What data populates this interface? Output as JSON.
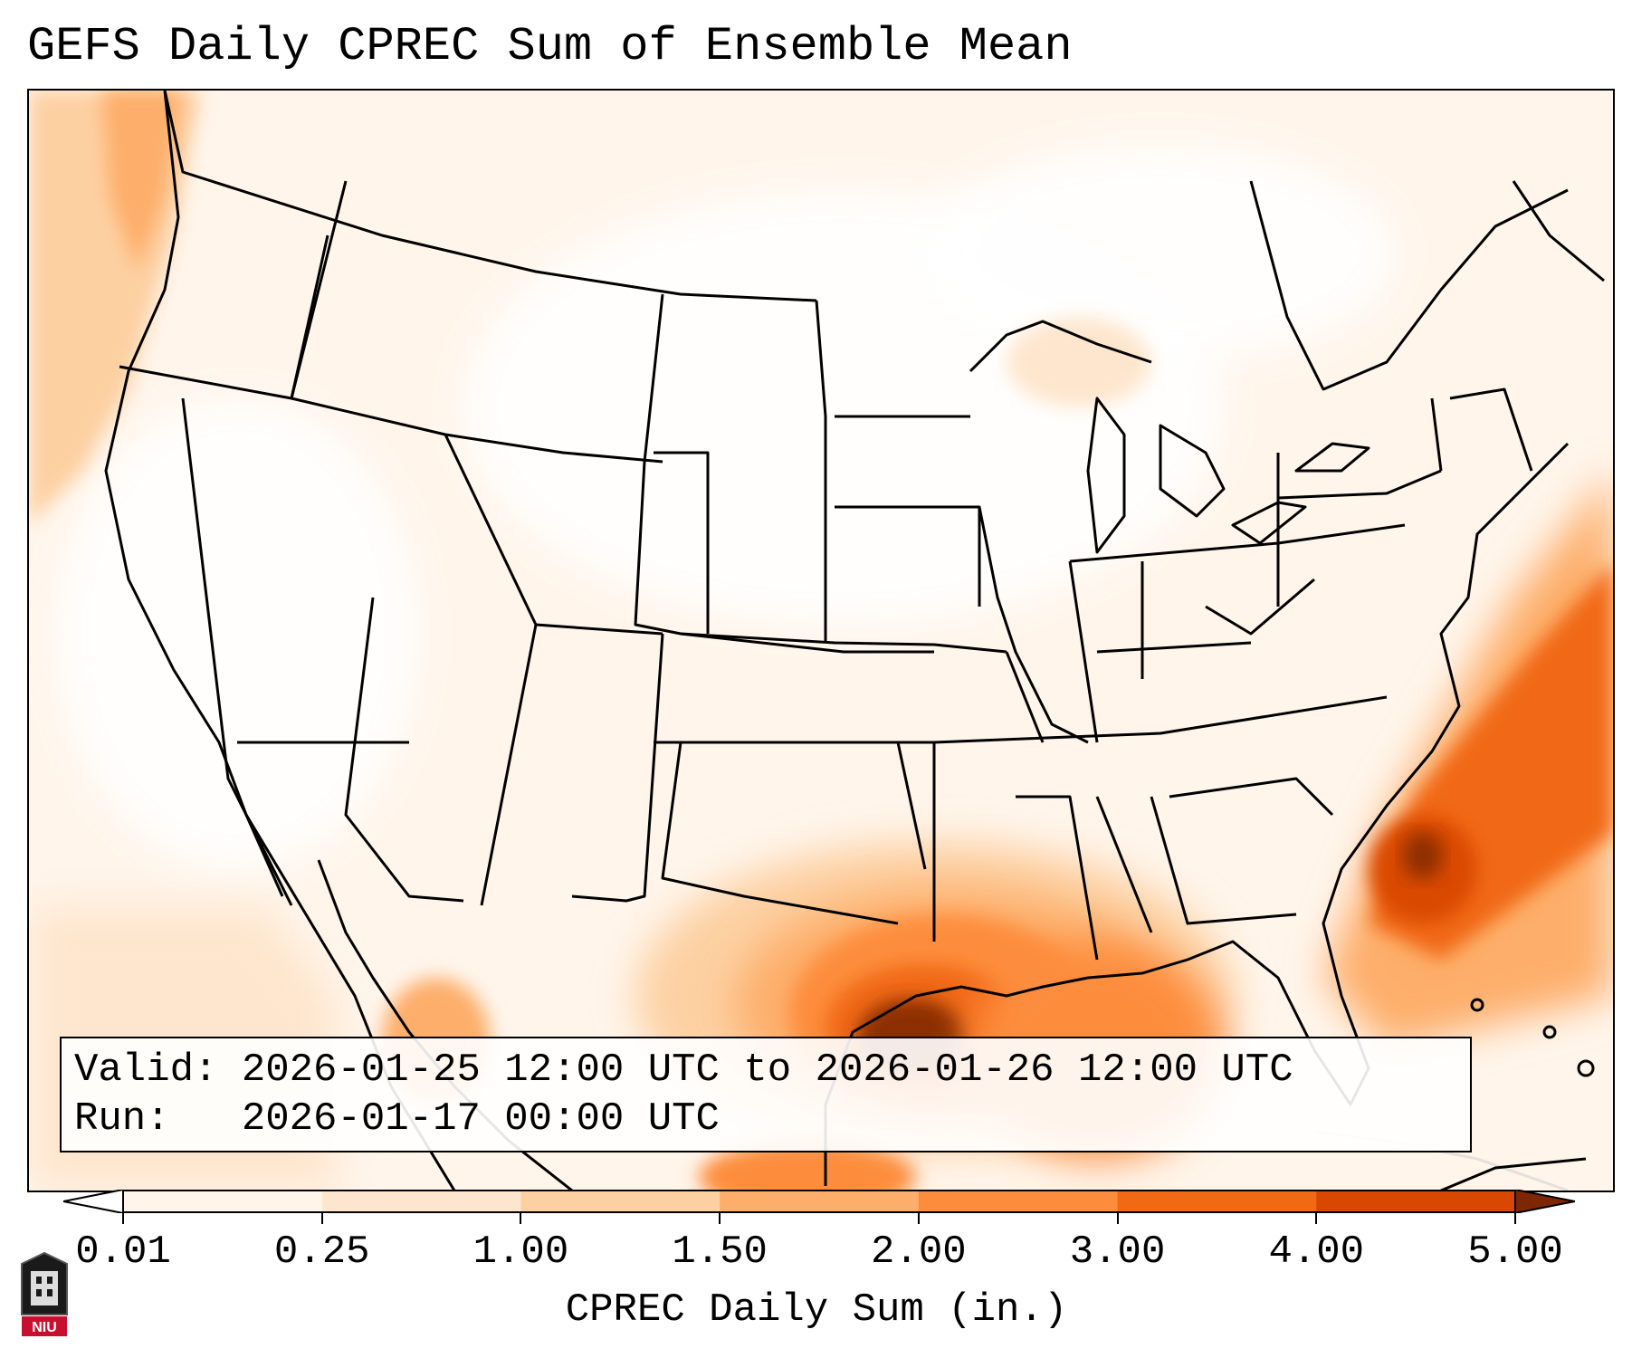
{
  "title": "GEFS Daily CPREC Sum of Ensemble Mean",
  "info": {
    "valid": "Valid: 2026-01-25 12:00 UTC to 2026-01-26 12:00 UTC",
    "run": "Run:   2026-01-17 00:00 UTC"
  },
  "colorbar": {
    "label": "CPREC Daily Sum (in.)",
    "ticks": [
      "0.01",
      "0.25",
      "1.00",
      "1.50",
      "2.00",
      "3.00",
      "4.00",
      "5.00"
    ],
    "colors": [
      "#fff5eb",
      "#fee6ce",
      "#fdd0a2",
      "#fdae6b",
      "#fd8d3c",
      "#f16913",
      "#d94801",
      "#8c2d04"
    ],
    "under_color": "#ffffff",
    "over_color": "#7f2704"
  },
  "logo": {
    "text": "NIU",
    "color": "#c8102e"
  }
}
